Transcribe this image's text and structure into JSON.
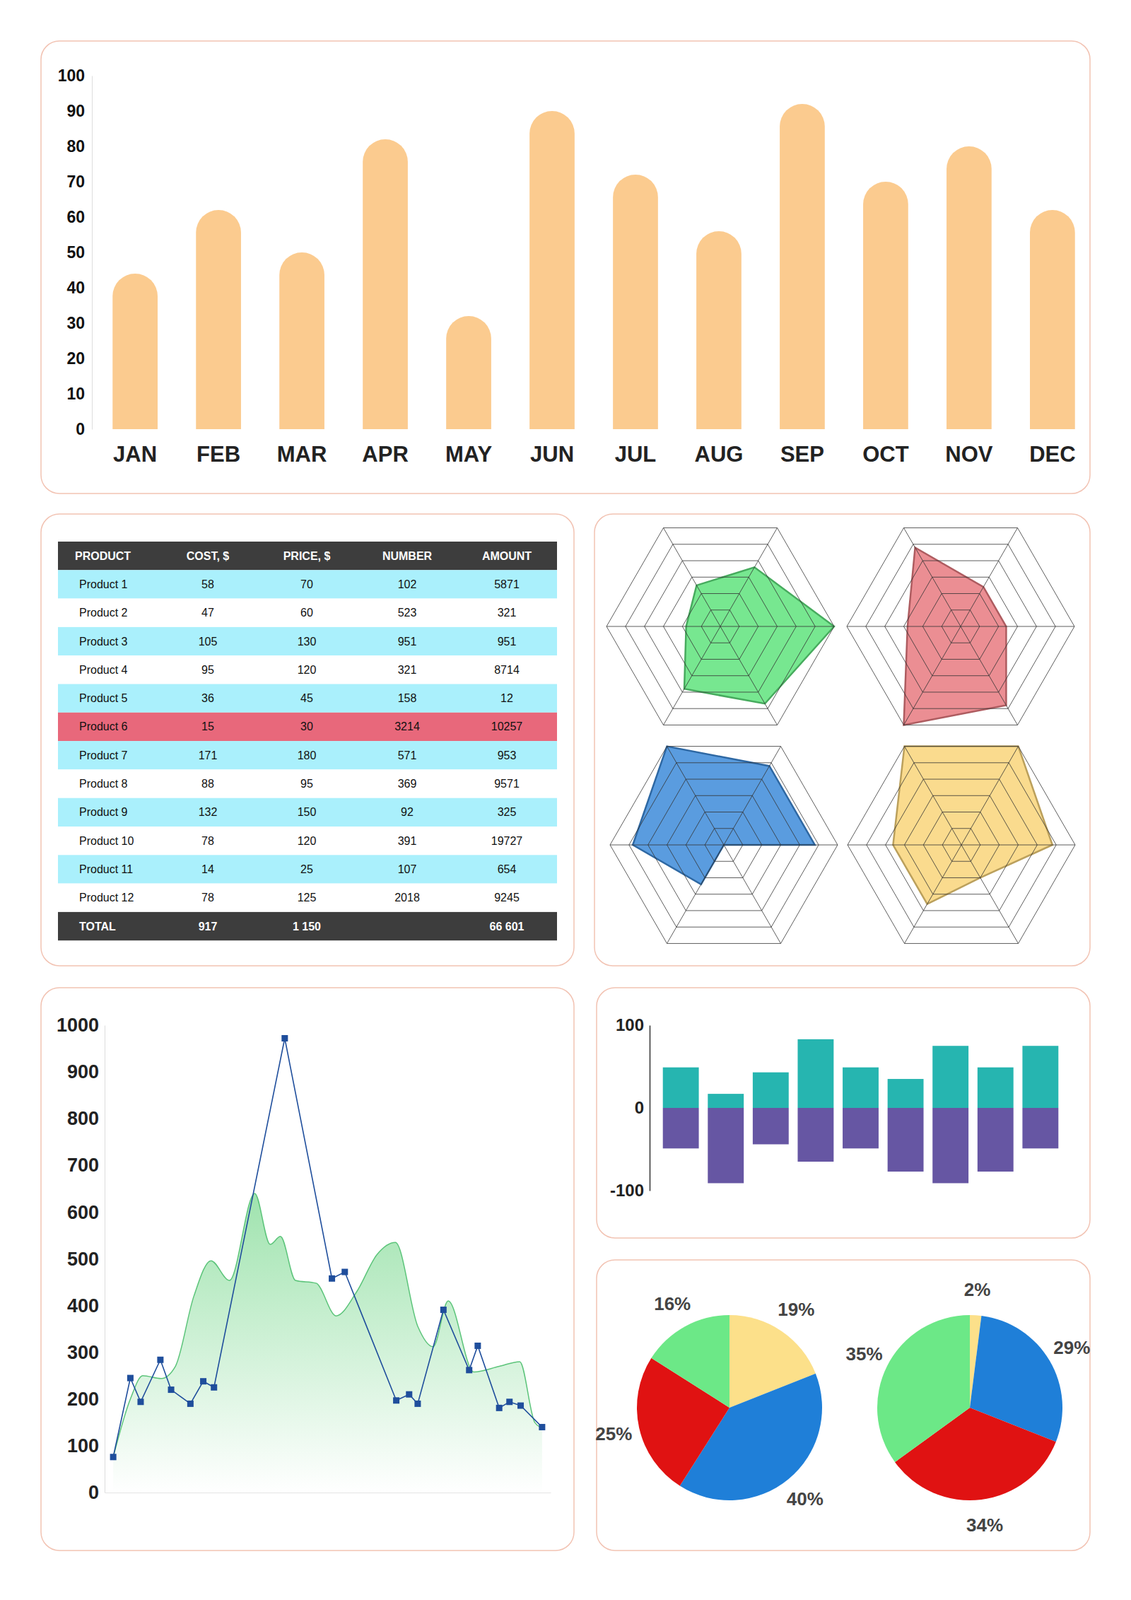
{
  "chart_data": [
    {
      "type": "bar",
      "categories": [
        "JAN",
        "FEB",
        "MAR",
        "APR",
        "MAY",
        "JUN",
        "JUL",
        "AUG",
        "SEP",
        "OCT",
        "NOV",
        "DEC"
      ],
      "values": [
        44,
        62,
        50,
        82,
        32,
        90,
        72,
        56,
        92,
        70,
        80,
        62
      ],
      "color": "#fbcb8f",
      "ylim": [
        0,
        100
      ],
      "yticks": [
        0,
        10,
        20,
        30,
        40,
        50,
        60,
        70,
        80,
        90,
        100
      ],
      "grid": false
    },
    {
      "type": "table",
      "columns": [
        "PRODUCT",
        "COST, $",
        "PRICE, $",
        "NUMBER",
        "AMOUNT"
      ],
      "rows": [
        [
          "Product 1",
          58,
          70,
          102,
          5871
        ],
        [
          "Product 2",
          47,
          60,
          523,
          321
        ],
        [
          "Product 3",
          105,
          130,
          951,
          951
        ],
        [
          "Product 4",
          95,
          120,
          321,
          8714
        ],
        [
          "Product 5",
          36,
          45,
          158,
          12
        ],
        [
          "Product 6",
          15,
          30,
          3214,
          10257
        ],
        [
          "Product 7",
          171,
          180,
          571,
          953
        ],
        [
          "Product 8",
          88,
          95,
          369,
          9571
        ],
        [
          "Product 9",
          132,
          150,
          92,
          325
        ],
        [
          "Product 10",
          78,
          120,
          391,
          19727
        ],
        [
          "Product 11",
          14,
          25,
          107,
          654
        ],
        [
          "Product 12",
          78,
          125,
          2018,
          9245
        ]
      ],
      "colors": [
        "#aaf0fc",
        "#ffffff",
        "#aaf0fc",
        "#ffffff",
        "#aaf0fc",
        "#e8687b",
        "#aaf0fc",
        "#ffffff",
        "#aaf0fc",
        "#ffffff",
        "#aaf0fc",
        "#ffffff"
      ],
      "total": [
        "TOTAL",
        917,
        "1 150",
        null,
        "66 601"
      ]
    },
    {
      "type": "radar",
      "values": [
        6,
        3.6,
        2.5,
        1.8,
        3.8,
        4.7
      ],
      "color": "#5fe37d",
      "ylim": [
        0,
        6
      ],
      "yticks": [
        1,
        2,
        3,
        4,
        5,
        6
      ],
      "grid": true,
      "tick_labels": false
    },
    {
      "type": "radar",
      "values": [
        2.4,
        2.4,
        4.8,
        2.8,
        6,
        4.8
      ],
      "color": "#e87a80",
      "ylim": [
        0,
        6
      ],
      "yticks": [
        1,
        2,
        3,
        4,
        5,
        6
      ],
      "grid": true,
      "tick_labels": false
    },
    {
      "type": "radar",
      "values": [
        4.8,
        4.8,
        6,
        4.8,
        2.4,
        0
      ],
      "color": "#3d8bd9",
      "ylim": [
        0,
        6
      ],
      "yticks": [
        1,
        2,
        3,
        4,
        5,
        6
      ],
      "grid": true,
      "tick_labels": false
    },
    {
      "type": "radar",
      "values": [
        4.8,
        6,
        6,
        3.6,
        3.6,
        2
      ],
      "color": "#f9d57a",
      "ylim": [
        0,
        6
      ],
      "yticks": [
        1,
        2,
        3,
        4,
        5,
        6
      ],
      "grid": true,
      "tick_labels": false
    },
    {
      "type": "line",
      "series": [
        {
          "type": "area",
          "color": "#5cc47a",
          "x": [
            0,
            4,
            6.9,
            11.2,
            14.5,
            18.8,
            22.8,
            27.1,
            33,
            36.6,
            39,
            42.5,
            47.3,
            52,
            56.8,
            61.5,
            65.8,
            71,
            74.6,
            78.1,
            84.1,
            90,
            94.8,
            98.3,
            100
          ],
          "values": [
            76,
            200,
            250,
            244,
            270,
            420,
            496,
            454,
            640,
            531,
            548,
            454,
            448,
            378,
            430,
            509,
            535,
            356,
            312,
            410,
            258,
            270,
            280,
            150,
            138
          ]
        },
        {
          "type": "line",
          "color": "#1f4e9c",
          "marker": "square",
          "x": [
            0,
            4,
            6.4,
            11,
            13.5,
            18,
            21,
            23.5,
            40,
            51,
            54,
            66,
            69,
            71,
            77,
            83,
            85,
            90,
            92.4,
            95,
            100
          ],
          "values": [
            76,
            245,
            194,
            284,
            220,
            190,
            238,
            225,
            972,
            458,
            472,
            197,
            210,
            190,
            391,
            262,
            314,
            181,
            194,
            186,
            140
          ]
        }
      ],
      "xlim": [
        -2,
        102
      ],
      "ylim": [
        0,
        1000
      ],
      "yticks": [
        0,
        100,
        200,
        300,
        400,
        500,
        600,
        700,
        800,
        900,
        1000
      ],
      "tick_labels": "y"
    },
    {
      "type": "bar",
      "categories": [
        null,
        null,
        null,
        null,
        null,
        null,
        null,
        null,
        null
      ],
      "series": [
        {
          "color": "#26b5b0",
          "values": [
            49,
            17,
            43,
            83,
            49,
            35,
            75,
            49,
            75
          ]
        },
        {
          "color": "#6656a3",
          "values": [
            -49,
            -91,
            -44,
            -65,
            -49,
            -77,
            -91,
            -77,
            -49
          ]
        }
      ],
      "stacked": true,
      "ylim": [
        -100,
        100
      ],
      "yticks": [
        -100,
        0,
        100
      ],
      "tick_labels": "y"
    },
    {
      "type": "pie",
      "values": [
        19,
        40,
        25,
        16
      ],
      "value_labels": [
        "19%",
        "40%",
        "25%",
        "16%"
      ],
      "colors": [
        "#fce08a",
        "#1f7fd8",
        "#e01212",
        "#6ce887"
      ],
      "data_labels": true
    },
    {
      "type": "pie",
      "values": [
        2,
        29,
        34,
        35
      ],
      "value_labels": [
        "2%",
        "29%",
        "34%",
        "35%"
      ],
      "colors": [
        "#fce08a",
        "#1f7fd8",
        "#e01212",
        "#6ce887"
      ],
      "data_labels": true
    }
  ]
}
